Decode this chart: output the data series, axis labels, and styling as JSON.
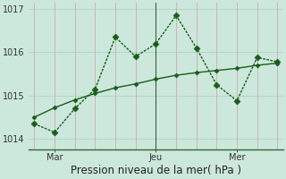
{
  "bg_color": "#cce8dc",
  "grid_color_v": "#d4a8b0",
  "grid_color_h": "#b0d8c8",
  "line_color": "#1a5c1a",
  "marker_color": "#1a5c1a",
  "axis_color": "#336633",
  "line1_x": [
    0,
    1,
    2,
    3,
    4,
    5,
    6,
    7,
    8,
    9,
    10,
    11,
    12
  ],
  "line1_y": [
    1014.35,
    1014.15,
    1014.7,
    1015.15,
    1016.35,
    1015.9,
    1016.2,
    1016.85,
    1016.1,
    1015.25,
    1014.88,
    1015.88,
    1015.78
  ],
  "line2_x": [
    0,
    1,
    2,
    3,
    4,
    5,
    6,
    7,
    8,
    9,
    10,
    11,
    12
  ],
  "line2_y": [
    1014.5,
    1014.72,
    1014.9,
    1015.05,
    1015.18,
    1015.27,
    1015.38,
    1015.47,
    1015.53,
    1015.58,
    1015.63,
    1015.7,
    1015.75
  ],
  "xtick_positions": [
    1,
    6,
    10
  ],
  "xtick_labels": [
    "Mar",
    "Jeu",
    "Mer"
  ],
  "vline_x": 6,
  "ylim": [
    1013.75,
    1017.15
  ],
  "xlim": [
    -0.3,
    12.3
  ],
  "ytick_values": [
    1014,
    1015,
    1016,
    1017
  ],
  "ytick_labels": [
    "1014",
    "1015",
    "1016",
    "1017"
  ],
  "xlabel": "Pression niveau de la mer( hPa )",
  "xlabel_fontsize": 8.5,
  "tick_fontsize": 7,
  "marker_size": 3.5,
  "linewidth": 1.0
}
